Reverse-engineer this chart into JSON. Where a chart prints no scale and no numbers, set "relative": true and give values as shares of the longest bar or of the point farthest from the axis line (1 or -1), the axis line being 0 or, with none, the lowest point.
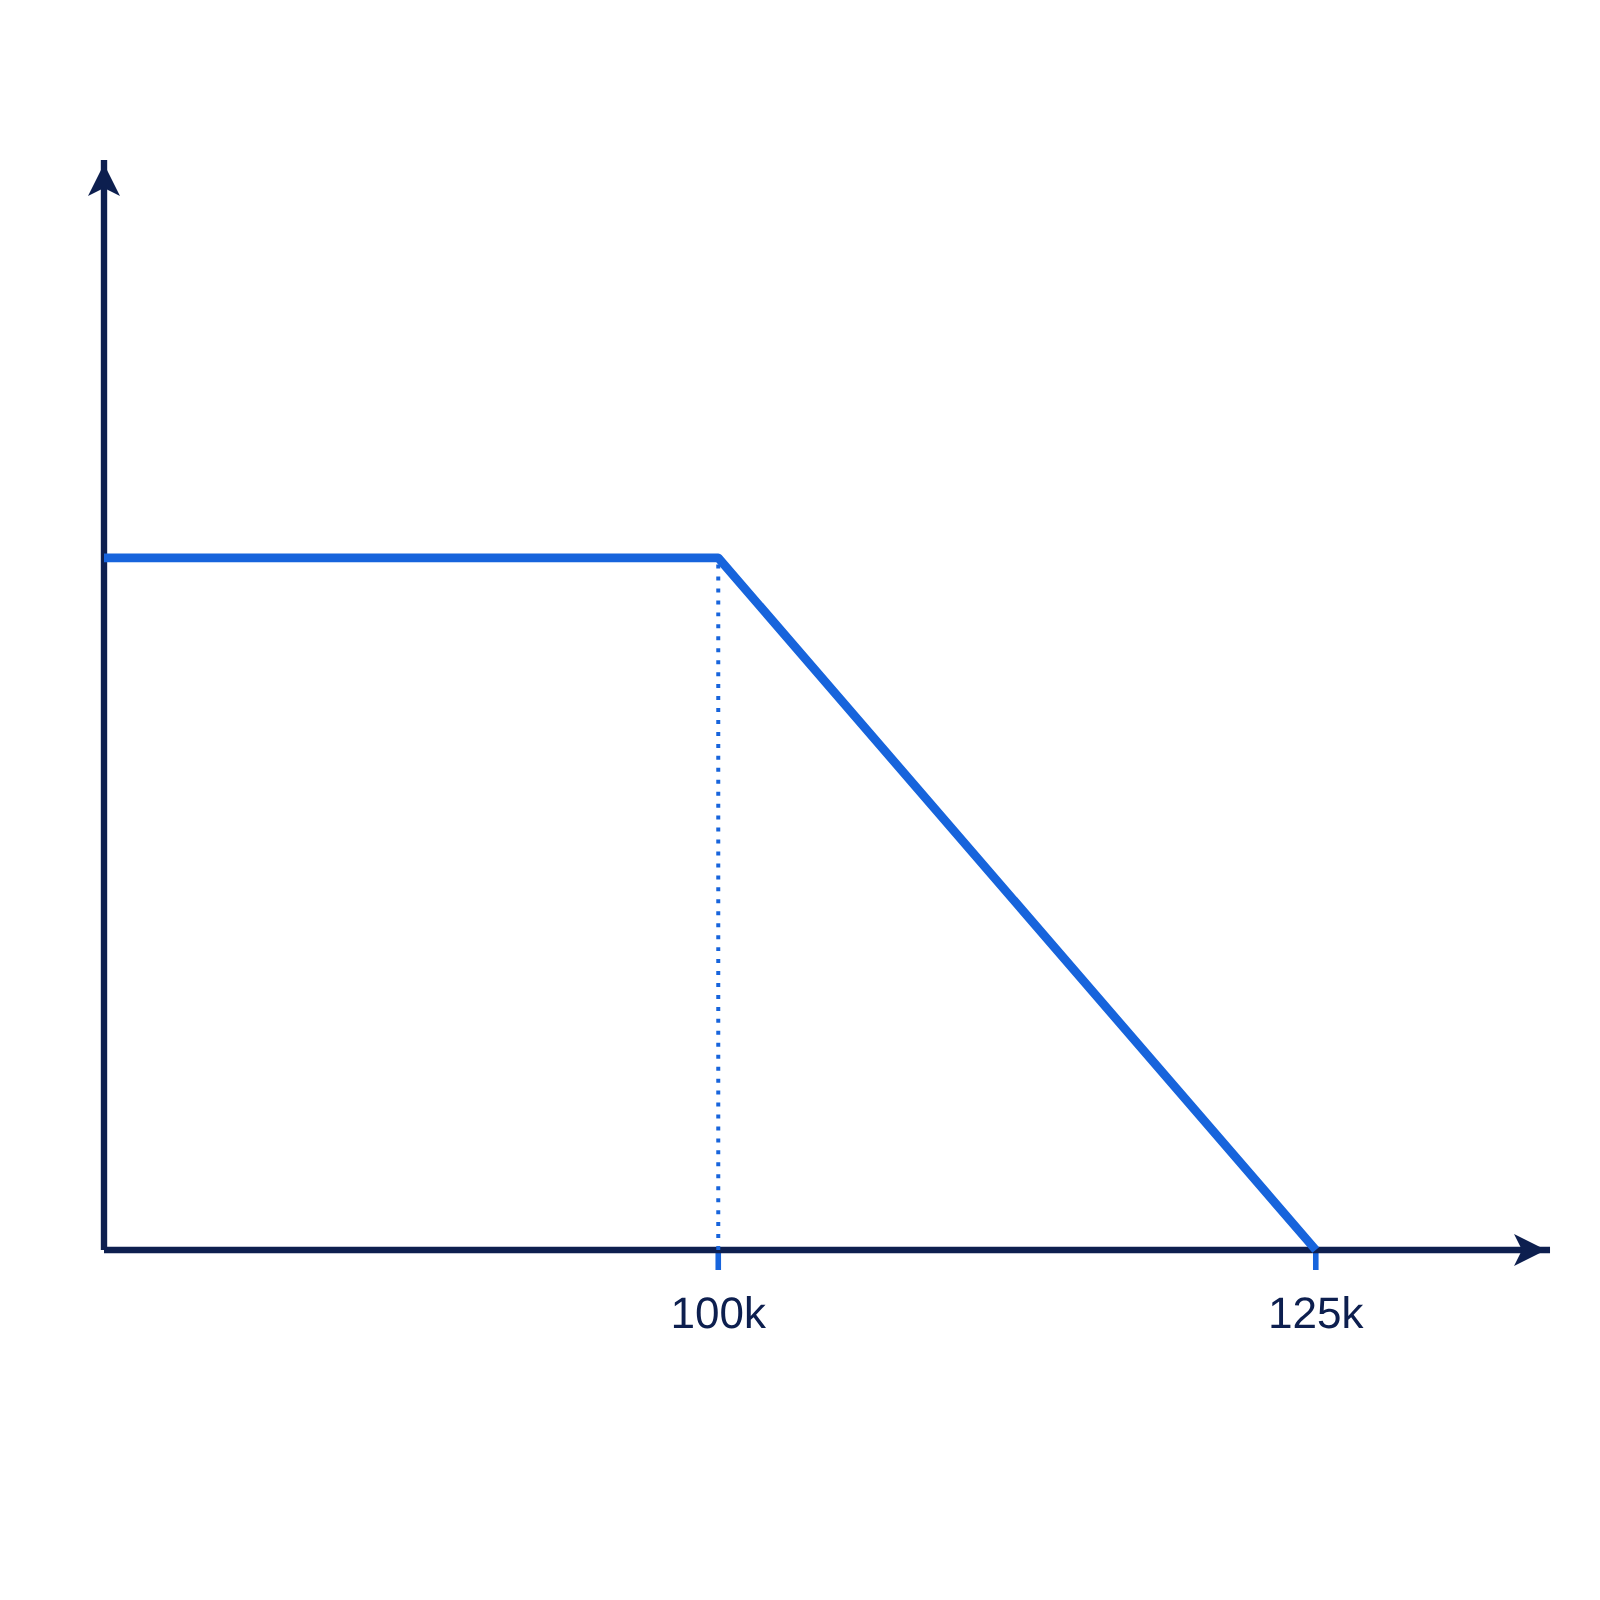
{
  "chart_data": {
    "type": "line",
    "relative": true,
    "x": [
      74300,
      100000,
      125000
    ],
    "values": [
      1,
      1,
      0
    ],
    "color": "#1764dc",
    "xlim": [
      74300,
      134800
    ],
    "xticks": [
      {
        "value": 100000,
        "label": "100k"
      },
      {
        "value": 125000,
        "label": "125k"
      }
    ],
    "ref_lines": [
      {
        "axis": "x",
        "value": 100000,
        "color": "#1764dc",
        "line_style": "dotted"
      }
    ],
    "grid": false,
    "marker": "none",
    "line_style": "solid"
  }
}
